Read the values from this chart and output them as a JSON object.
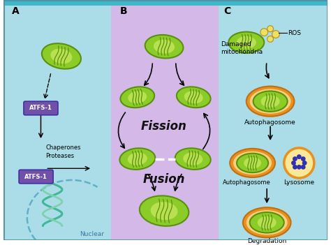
{
  "bg_color_main": "#aadde8",
  "bg_color_B": "#d4b8e8",
  "bg_color_C": "#aadde8",
  "mito_fill": "#8ccc28",
  "mito_edge": "#5a9010",
  "mito_inner_fill": "#b8e050",
  "orange_outer": "#e89020",
  "orange_inner": "#f8d080",
  "lyso_fill": "#f8e898",
  "lyso_edge": "#e89020",
  "purple_fill": "#7050a8",
  "purple_edge": "#4030a0",
  "border_top": "#40b8c8",
  "dna_color1": "#40b898",
  "dna_color2": "#80d0b0",
  "nuclear_arc_color": "#60b0c8",
  "label_A": "A",
  "label_B": "B",
  "label_C": "C",
  "text_fission": "Fission",
  "text_fusion": "Fusion",
  "text_atfs1": "ATFS-1",
  "text_chaperones": "Chaperones",
  "text_proteases": "Proteases",
  "text_nuclear": "Nuclear",
  "text_ros": "ROS",
  "text_damaged": "Damaged\nmitochondria",
  "text_autophagosome1": "Autophagosome",
  "text_autophagosome2": "Autophagosome",
  "text_lysosome": "Lysosome",
  "text_degradation": "Degradation",
  "dot_color": "#3030b0"
}
